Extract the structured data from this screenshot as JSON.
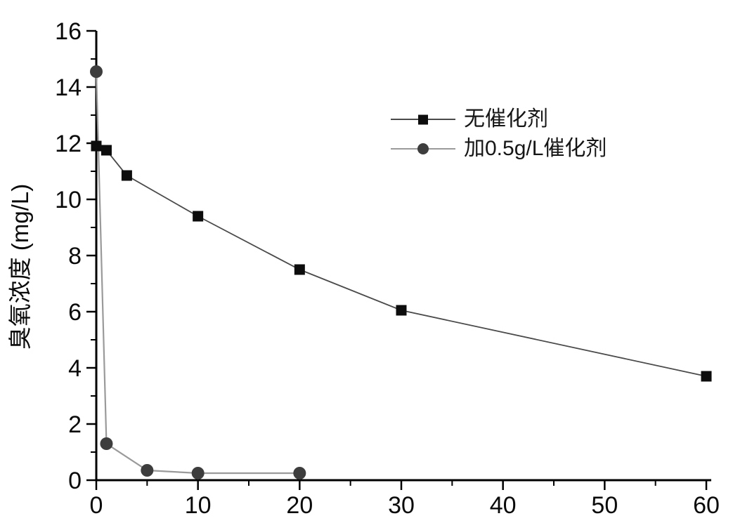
{
  "figure": {
    "background_color": "#ffffff",
    "axis_color": "#000000",
    "tick_label_color": "#0a0a0a"
  },
  "chart_data": {
    "type": "line",
    "title": "",
    "xlabel": "",
    "ylabel": "臭氧浓度 (mg/L)",
    "xlim": [
      0,
      60
    ],
    "ylim": [
      0,
      16
    ],
    "x_major_ticks": [
      0,
      10,
      20,
      30,
      40,
      50,
      60
    ],
    "x_minor_step": 5,
    "y_major_ticks": [
      0,
      2,
      4,
      6,
      8,
      10,
      12,
      14,
      16
    ],
    "y_minor_step": 1,
    "grid": false,
    "legend_position": "upper-center",
    "series": [
      {
        "name": "无催化剂",
        "marker": "square",
        "marker_color": "#0d0d0d",
        "line_color": "#4a4a4a",
        "points": [
          [
            0,
            11.9
          ],
          [
            1,
            11.75
          ],
          [
            3,
            10.85
          ],
          [
            10,
            9.4
          ],
          [
            20,
            7.5
          ],
          [
            30,
            6.05
          ],
          [
            60,
            3.7
          ]
        ]
      },
      {
        "name": "加0.5g/L催化剂",
        "marker": "circle",
        "marker_color": "#3d3d3d",
        "line_color": "#9a9a9a",
        "points": [
          [
            0,
            14.55
          ],
          [
            1,
            1.3
          ],
          [
            5,
            0.35
          ],
          [
            10,
            0.25
          ],
          [
            20,
            0.25
          ]
        ]
      }
    ]
  }
}
